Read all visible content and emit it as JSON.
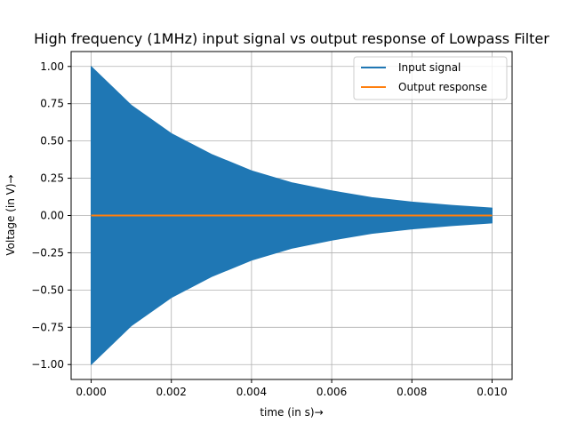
{
  "chart_data": {
    "type": "line",
    "title": "High frequency (1MHz) input signal vs output response of Lowpass Filter",
    "xlabel": "time (in s)→",
    "ylabel": "Voltage (in V)→",
    "xlim": [
      -0.0005,
      0.0105
    ],
    "ylim": [
      -1.1,
      1.1
    ],
    "xticks": [
      0.0,
      0.002,
      0.004,
      0.006,
      0.008,
      0.01
    ],
    "xtick_labels": [
      "0.000",
      "0.002",
      "0.004",
      "0.006",
      "0.008",
      "0.010"
    ],
    "yticks": [
      -1.0,
      -0.75,
      -0.5,
      -0.25,
      0.0,
      0.25,
      0.5,
      0.75,
      1.0
    ],
    "ytick_labels": [
      "−1.00",
      "−0.75",
      "−0.50",
      "−0.25",
      "0.00",
      "0.25",
      "0.50",
      "0.75",
      "1.00"
    ],
    "grid": true,
    "legend_position": "top-right",
    "series": [
      {
        "name": "Input signal",
        "color": "#1f77b4",
        "style": "decaying sinusoid, envelope shown",
        "x": [
          0.0,
          0.001,
          0.002,
          0.003,
          0.004,
          0.005,
          0.006,
          0.007,
          0.008,
          0.009,
          0.01
        ],
        "envelope": [
          1.0,
          0.74,
          0.55,
          0.41,
          0.3,
          0.22,
          0.165,
          0.12,
          0.09,
          0.068,
          0.05
        ]
      },
      {
        "name": "Output response",
        "color": "#ff7f0e",
        "x": [
          0.0,
          0.01
        ],
        "values": [
          0.0,
          0.0
        ]
      }
    ]
  }
}
